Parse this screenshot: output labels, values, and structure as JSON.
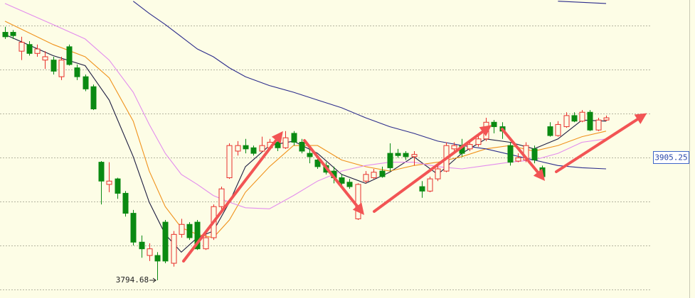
{
  "chart_data": {
    "type": "candlestick",
    "ylim": [
      3778.7,
      4047.1
    ],
    "grid_values": [
      4024.1,
      3984.5,
      3944.9,
      3905.3,
      3865.6,
      3826,
      3786.4
    ],
    "up_color": "#e8302c",
    "down_color": "#0a8a12",
    "open": [
      4018,
      4018,
      4001,
      4007,
      3999,
      3993,
      3993,
      3978,
      4005,
      3986,
      3978,
      3969,
      3901,
      3881,
      3886,
      3873,
      3855,
      3829,
      3817,
      3817,
      3847,
      3810,
      3836,
      3845,
      3847,
      3823,
      3833,
      3861,
      3887,
      3911,
      3916,
      3914,
      3911,
      3914,
      3919,
      3914,
      3927,
      3919,
      3909,
      3903,
      3898,
      3893,
      3887,
      3883,
      3850,
      3884,
      3887,
      3893,
      3909,
      3909,
      3909,
      3906,
      3879,
      3875,
      3886,
      3893,
      3913,
      3916,
      3913,
      3917,
      3922,
      3937,
      3933,
      3916,
      3902,
      3903,
      3913,
      3896,
      3933,
      3925,
      3933,
      3943,
      3938,
      3946,
      3930,
      3939
    ],
    "close": [
      4014,
      4015,
      4009,
      3999,
      4003,
      3996,
      3983,
      3993,
      3989,
      3978,
      3967,
      3949,
      3884,
      3884,
      3873,
      3855,
      3829,
      3823,
      3823,
      3812,
      3812,
      3836,
      3845,
      3833,
      3823,
      3833,
      3861,
      3877,
      3916,
      3916,
      3913,
      3909,
      3916,
      3919,
      3914,
      3923,
      3919,
      3911,
      3906,
      3897,
      3892,
      3887,
      3882,
      3879,
      3881,
      3890,
      3892,
      3888,
      3896,
      3907,
      3906,
      3908,
      3875,
      3886,
      3895,
      3916,
      3916,
      3909,
      3917,
      3922,
      3937,
      3933,
      3929,
      3901,
      3905,
      3916,
      3903,
      3888,
      3925,
      3935,
      3943,
      3938,
      3946,
      3930,
      3939,
      3941
    ],
    "high": [
      4023,
      4020,
      4014,
      4010,
      4007,
      4001,
      3996,
      3996,
      4007,
      3989,
      3980,
      3971,
      3902,
      3901,
      3887,
      3875,
      3858,
      3835,
      3828,
      3820,
      3849,
      3839,
      3850,
      3847,
      3849,
      3836,
      3863,
      3879,
      3918,
      3920,
      3922,
      3916,
      3924,
      3922,
      3922,
      3929,
      3929,
      3922,
      3913,
      3906,
      3901,
      3897,
      3890,
      3886,
      3882,
      3893,
      3895,
      3897,
      3918,
      3913,
      3911,
      3911,
      3884,
      3888,
      3898,
      3919,
      3919,
      3922,
      3920,
      3925,
      3941,
      3939,
      3937,
      3919,
      3909,
      3919,
      3916,
      3898,
      3937,
      3938,
      3946,
      3946,
      3948,
      3948,
      3941,
      3943
    ],
    "low": [
      4012,
      4012,
      3993,
      3997,
      3996,
      3985,
      3980,
      3975,
      3988,
      3975,
      3965,
      3948,
      3863,
      3874,
      3868,
      3852,
      3826,
      3815,
      3812,
      3794.68,
      3810,
      3807,
      3833,
      3831,
      3822,
      3822,
      3831,
      3858,
      3886,
      3907,
      3909,
      3907,
      3910,
      3913,
      3911,
      3913,
      3916,
      3909,
      3900,
      3895,
      3890,
      3882,
      3879,
      3877,
      3849,
      3882,
      3886,
      3887,
      3893,
      3905,
      3903,
      3898,
      3869,
      3874,
      3884,
      3892,
      3909,
      3906,
      3911,
      3915,
      3920,
      3927,
      3922,
      3898,
      3901,
      3901,
      3900,
      3886,
      3924,
      3924,
      3932,
      3937,
      3937,
      3929,
      3929,
      3938
    ],
    "series": [
      {
        "color": "#1c1c40",
        "x": [
          0,
          6,
          10,
          13,
          16,
          18,
          20,
          22,
          24,
          26,
          28,
          30,
          33,
          36,
          39,
          42,
          45,
          48,
          51,
          54,
          57,
          60,
          63,
          66,
          69,
          72,
          75
        ],
        "values": [
          4016,
          3997,
          3988,
          3957,
          3906,
          3865,
          3836,
          3820,
          3833,
          3839,
          3865,
          3897,
          3916,
          3920,
          3909,
          3890,
          3882,
          3892,
          3906,
          3890,
          3909,
          3922,
          3919,
          3913,
          3922,
          3939,
          3938
        ]
      },
      {
        "color": "#f0921c",
        "x": [
          0,
          6,
          10,
          13,
          16,
          18,
          20,
          22,
          24,
          26,
          28,
          30,
          33,
          36,
          39,
          42,
          45,
          48,
          51,
          54,
          57,
          60,
          63,
          66,
          69,
          72,
          75
        ],
        "values": [
          4028,
          4007,
          3996,
          3977,
          3938,
          3893,
          3861,
          3842,
          3836,
          3833,
          3849,
          3874,
          3897,
          3916,
          3916,
          3903,
          3897,
          3893,
          3898,
          3901,
          3906,
          3913,
          3916,
          3911,
          3916,
          3924,
          3929
        ]
      },
      {
        "color": "#e38ced",
        "x": [
          0,
          6,
          10,
          13,
          16,
          18,
          20,
          22,
          24,
          26,
          28,
          30,
          33,
          36,
          39,
          42,
          45,
          48,
          51,
          54,
          57,
          60,
          63,
          66,
          69,
          72,
          75
        ],
        "values": [
          4044,
          4025,
          4012,
          3993,
          3964,
          3935,
          3909,
          3890,
          3881,
          3871,
          3865,
          3860,
          3859,
          3871,
          3884,
          3893,
          3898,
          3901,
          3901,
          3897,
          3895,
          3898,
          3901,
          3903,
          3909,
          3919,
          3922
        ]
      },
      {
        "color": "#2c2c8c",
        "x": [
          16,
          18,
          20,
          22,
          24,
          26,
          28,
          30,
          33,
          36,
          39,
          42,
          45,
          48,
          51,
          54,
          57,
          60,
          63,
          66,
          69,
          72,
          75
        ],
        "values": [
          4046,
          4035,
          4025,
          4014,
          4003,
          3996,
          3986,
          3978,
          3970,
          3964,
          3957,
          3950,
          3941,
          3933,
          3927,
          3920,
          3916,
          3913,
          3908,
          3903,
          3898,
          3896,
          3895
        ]
      },
      {
        "color": "#2c2c8c",
        "x": [
          69,
          72,
          75
        ],
        "values": [
          4046,
          4045,
          4044
        ]
      }
    ],
    "price_marker": 3905.25
  }
}
